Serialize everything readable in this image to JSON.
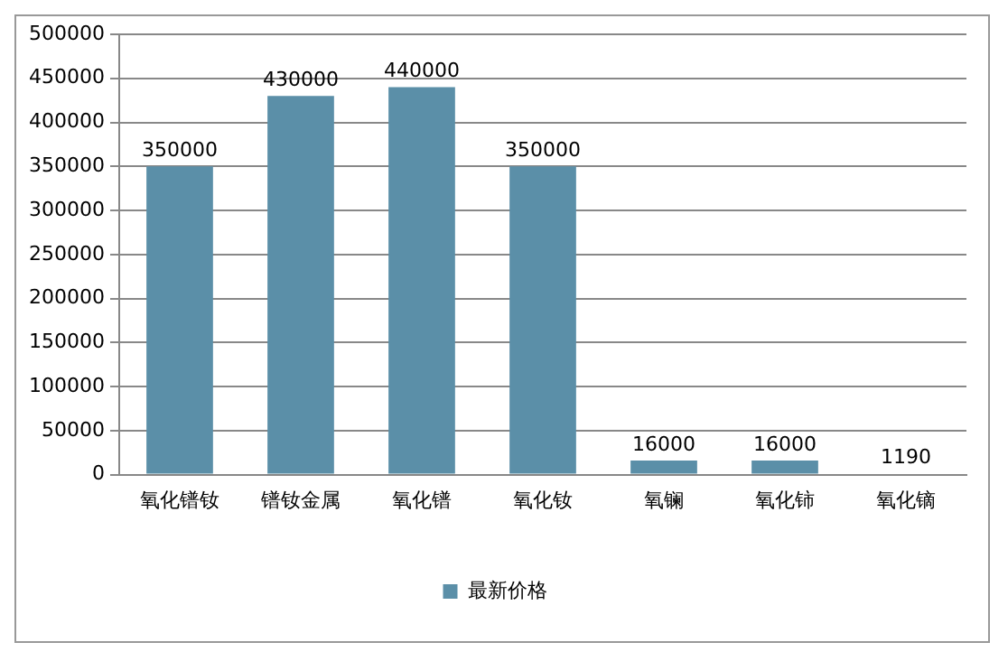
{
  "chart_data": {
    "type": "bar",
    "categories": [
      "氧化镨钕",
      "镨钕金属",
      "氧化镨",
      "氧化钕",
      "氧镧",
      "氧化铈",
      "氧化镝"
    ],
    "series": [
      {
        "name": "最新价格",
        "color": "#5b8fa8",
        "values": [
          350000,
          430000,
          440000,
          350000,
          16000,
          16000,
          1190
        ]
      }
    ],
    "ylim": [
      0,
      500000
    ],
    "yticks": [
      0,
      50000,
      100000,
      150000,
      200000,
      250000,
      300000,
      350000,
      400000,
      450000,
      500000
    ],
    "grid": "y",
    "legend": "bottom",
    "data_labels": true
  }
}
